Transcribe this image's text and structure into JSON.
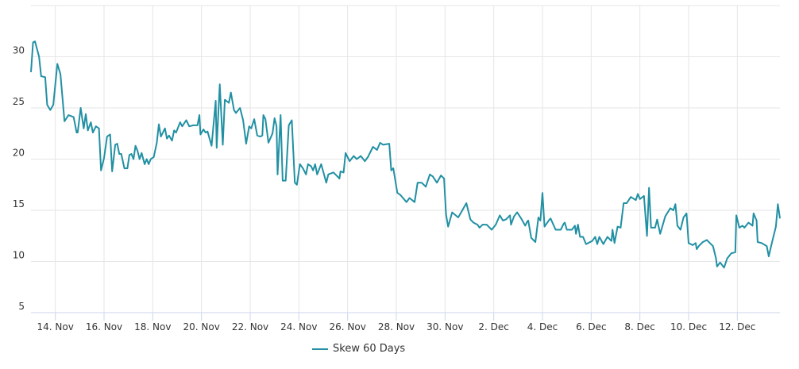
{
  "chart_data": {
    "type": "line",
    "title": "",
    "xlabel": "",
    "ylabel": "",
    "ylim": [
      5,
      35
    ],
    "yticks": [
      5,
      10,
      15,
      20,
      25,
      30
    ],
    "xlim": [
      "11-13 00:00",
      "12-13 18:00"
    ],
    "xticks": [
      {
        "date": "11-14 00:00",
        "label": "14. Nov"
      },
      {
        "date": "11-16 00:00",
        "label": "16. Nov"
      },
      {
        "date": "11-18 00:00",
        "label": "18. Nov"
      },
      {
        "date": "11-20 00:00",
        "label": "20. Nov"
      },
      {
        "date": "11-22 00:00",
        "label": "22. Nov"
      },
      {
        "date": "11-24 00:00",
        "label": "24. Nov"
      },
      {
        "date": "11-26 00:00",
        "label": "26. Nov"
      },
      {
        "date": "11-28 00:00",
        "label": "28. Nov"
      },
      {
        "date": "11-30 00:00",
        "label": "30. Nov"
      },
      {
        "date": "12-02 00:00",
        "label": "2. Dec"
      },
      {
        "date": "12-04 00:00",
        "label": "4. Dec"
      },
      {
        "date": "12-06 00:00",
        "label": "6. Dec"
      },
      {
        "date": "12-08 00:00",
        "label": "8. Dec"
      },
      {
        "date": "12-10 00:00",
        "label": "10. Dec"
      },
      {
        "date": "12-12 00:00",
        "label": "12. Dec"
      }
    ],
    "grid": true,
    "legend_position": "bottom",
    "series": [
      {
        "name": "Skew 60 Days",
        "color": "#2190a3",
        "points": [
          [
            "11-13 00:00",
            28.5
          ],
          [
            "11-13 02:00",
            31.4
          ],
          [
            "11-13 04:00",
            31.5
          ],
          [
            "11-13 08:00",
            30.0
          ],
          [
            "11-13 10:00",
            28.1
          ],
          [
            "11-13 14:00",
            28.0
          ],
          [
            "11-13 16:00",
            25.3
          ],
          [
            "11-13 19:00",
            24.8
          ],
          [
            "11-13 22:00",
            25.3
          ],
          [
            "11-14 02:00",
            29.3
          ],
          [
            "11-14 05:00",
            28.3
          ],
          [
            "11-14 09:00",
            23.7
          ],
          [
            "11-14 13:00",
            24.3
          ],
          [
            "11-14 18:00",
            24.1
          ],
          [
            "11-14 21:00",
            22.6
          ],
          [
            "11-14 22:00",
            22.6
          ],
          [
            "11-15 01:00",
            25.0
          ],
          [
            "11-15 04:00",
            23.0
          ],
          [
            "11-15 06:00",
            24.4
          ],
          [
            "11-15 08:00",
            22.8
          ],
          [
            "11-15 11:00",
            23.6
          ],
          [
            "11-15 13:00",
            22.6
          ],
          [
            "11-15 16:00",
            23.2
          ],
          [
            "11-15 19:00",
            23.0
          ],
          [
            "11-15 21:00",
            18.9
          ],
          [
            "11-16 00:00",
            20.1
          ],
          [
            "11-16 03:00",
            22.2
          ],
          [
            "11-16 06:00",
            22.4
          ],
          [
            "11-16 08:00",
            18.8
          ],
          [
            "11-16 11:00",
            21.4
          ],
          [
            "11-16 13:00",
            21.5
          ],
          [
            "11-16 15:00",
            20.5
          ],
          [
            "11-16 17:00",
            20.5
          ],
          [
            "11-16 20:00",
            19.1
          ],
          [
            "11-16 23:00",
            19.1
          ],
          [
            "11-17 01:00",
            20.4
          ],
          [
            "11-17 03:00",
            20.5
          ],
          [
            "11-17 05:00",
            20.0
          ],
          [
            "11-17 07:00",
            21.3
          ],
          [
            "11-17 09:00",
            20.8
          ],
          [
            "11-17 11:00",
            20.0
          ],
          [
            "11-17 13:00",
            20.6
          ],
          [
            "11-17 16:00",
            19.5
          ],
          [
            "11-17 18:00",
            20.0
          ],
          [
            "11-17 20:00",
            19.5
          ],
          [
            "11-17 22:00",
            20.0
          ],
          [
            "11-18 01:00",
            20.2
          ],
          [
            "11-18 04:00",
            21.6
          ],
          [
            "11-18 06:00",
            23.4
          ],
          [
            "11-18 08:00",
            22.2
          ],
          [
            "11-18 12:00",
            23.0
          ],
          [
            "11-18 14:00",
            22.0
          ],
          [
            "11-18 16:00",
            22.3
          ],
          [
            "11-18 19:00",
            21.8
          ],
          [
            "11-18 21:00",
            22.8
          ],
          [
            "11-18 23:00",
            22.6
          ],
          [
            "11-19 03:00",
            23.6
          ],
          [
            "11-19 05:00",
            23.2
          ],
          [
            "11-19 09:00",
            23.8
          ],
          [
            "11-19 12:00",
            23.2
          ],
          [
            "11-19 16:00",
            23.3
          ],
          [
            "11-19 20:00",
            23.3
          ],
          [
            "11-19 22:00",
            24.3
          ],
          [
            "11-19 23:00",
            22.4
          ],
          [
            "11-20 02:00",
            22.9
          ],
          [
            "11-20 04:00",
            22.6
          ],
          [
            "11-20 06:00",
            22.7
          ],
          [
            "11-20 10:00",
            21.3
          ],
          [
            "11-20 14:00",
            25.7
          ],
          [
            "11-20 15:00",
            21.1
          ],
          [
            "11-20 18:00",
            27.3
          ],
          [
            "11-20 21:00",
            21.4
          ],
          [
            "11-20 23:00",
            25.8
          ],
          [
            "11-21 03:00",
            25.5
          ],
          [
            "11-21 05:00",
            26.5
          ],
          [
            "11-21 08:00",
            24.8
          ],
          [
            "11-21 10:00",
            24.5
          ],
          [
            "11-21 14:00",
            25.0
          ],
          [
            "11-21 17:00",
            23.8
          ],
          [
            "11-21 20:00",
            21.5
          ],
          [
            "11-21 23:00",
            23.2
          ],
          [
            "11-22 01:00",
            23.0
          ],
          [
            "11-22 04:00",
            23.9
          ],
          [
            "11-22 07:00",
            22.3
          ],
          [
            "11-22 10:00",
            22.2
          ],
          [
            "11-22 12:00",
            22.3
          ],
          [
            "11-22 13:00",
            24.3
          ],
          [
            "11-22 15:00",
            23.9
          ],
          [
            "11-22 18:00",
            21.6
          ],
          [
            "11-22 22:00",
            22.5
          ],
          [
            "11-23 00:00",
            24.0
          ],
          [
            "11-23 02:00",
            23.2
          ],
          [
            "11-23 03:00",
            18.5
          ],
          [
            "11-23 06:00",
            24.3
          ],
          [
            "11-23 08:00",
            17.9
          ],
          [
            "11-23 11:00",
            17.9
          ],
          [
            "11-23 14:00",
            23.3
          ],
          [
            "11-23 17:00",
            23.8
          ],
          [
            "11-23 20:00",
            17.7
          ],
          [
            "11-23 22:00",
            17.5
          ],
          [
            "11-24 01:00",
            19.5
          ],
          [
            "11-24 04:00",
            19.1
          ],
          [
            "11-24 07:00",
            18.5
          ],
          [
            "11-24 09:00",
            19.5
          ],
          [
            "11-24 12:00",
            19.3
          ],
          [
            "11-24 14:00",
            18.9
          ],
          [
            "11-24 16:00",
            19.5
          ],
          [
            "11-24 18:00",
            18.5
          ],
          [
            "11-24 22:00",
            19.5
          ],
          [
            "11-25 01:00",
            18.4
          ],
          [
            "11-25 03:00",
            17.7
          ],
          [
            "11-25 05:00",
            18.5
          ],
          [
            "11-25 10:00",
            18.7
          ],
          [
            "11-25 13:00",
            18.4
          ],
          [
            "11-25 16:00",
            18.1
          ],
          [
            "11-25 17:00",
            18.8
          ],
          [
            "11-25 20:00",
            18.7
          ],
          [
            "11-25 22:00",
            20.6
          ],
          [
            "11-26 02:00",
            19.8
          ],
          [
            "11-26 06:00",
            20.3
          ],
          [
            "11-26 09:00",
            20.0
          ],
          [
            "11-26 13:00",
            20.3
          ],
          [
            "11-26 17:00",
            19.8
          ],
          [
            "11-26 20:00",
            20.2
          ],
          [
            "11-27 01:00",
            21.2
          ],
          [
            "11-27 05:00",
            20.9
          ],
          [
            "11-27 08:00",
            21.6
          ],
          [
            "11-27 11:00",
            21.4
          ],
          [
            "11-27 17:00",
            21.5
          ],
          [
            "11-27 19:00",
            18.9
          ],
          [
            "11-27 21:00",
            19.1
          ],
          [
            "11-28 01:00",
            16.7
          ],
          [
            "11-28 04:00",
            16.5
          ],
          [
            "11-28 10:00",
            15.8
          ],
          [
            "11-28 13:00",
            16.2
          ],
          [
            "11-28 18:00",
            15.8
          ],
          [
            "11-28 21:00",
            17.7
          ],
          [
            "11-29 01:00",
            17.7
          ],
          [
            "11-29 05:00",
            17.3
          ],
          [
            "11-29 09:00",
            18.5
          ],
          [
            "11-29 12:00",
            18.3
          ],
          [
            "11-29 16:00",
            17.7
          ],
          [
            "11-29 20:00",
            18.4
          ],
          [
            "11-29 23:00",
            18.1
          ],
          [
            "11-30 01:00",
            14.6
          ],
          [
            "11-30 03:00",
            13.4
          ],
          [
            "11-30 07:00",
            14.8
          ],
          [
            "11-30 13:00",
            14.3
          ],
          [
            "11-30 17:00",
            15.0
          ],
          [
            "11-30 21:00",
            15.7
          ],
          [
            "12-01 01:00",
            14.1
          ],
          [
            "12-01 04:00",
            13.8
          ],
          [
            "12-01 08:00",
            13.6
          ],
          [
            "12-01 10:00",
            13.3
          ],
          [
            "12-01 13:00",
            13.6
          ],
          [
            "12-01 17:00",
            13.6
          ],
          [
            "12-01 22:00",
            13.1
          ],
          [
            "12-02 02:00",
            13.6
          ],
          [
            "12-02 06:00",
            14.5
          ],
          [
            "12-02 09:00",
            14.0
          ],
          [
            "12-02 12:00",
            14.1
          ],
          [
            "12-02 16:00",
            14.5
          ],
          [
            "12-02 17:00",
            13.6
          ],
          [
            "12-02 20:00",
            14.4
          ],
          [
            "12-02 23:00",
            14.8
          ],
          [
            "12-03 03:00",
            14.2
          ],
          [
            "12-03 07:00",
            13.5
          ],
          [
            "12-03 09:00",
            13.9
          ],
          [
            "12-03 10:00",
            14.0
          ],
          [
            "12-03 13:00",
            12.3
          ],
          [
            "12-03 17:00",
            11.9
          ],
          [
            "12-03 20:00",
            14.3
          ],
          [
            "12-03 22:00",
            14.0
          ],
          [
            "12-04 00:00",
            16.7
          ],
          [
            "12-04 02:00",
            13.4
          ],
          [
            "12-04 07:00",
            14.1
          ],
          [
            "12-04 08:00",
            14.2
          ],
          [
            "12-04 13:00",
            13.1
          ],
          [
            "12-04 18:00",
            13.1
          ],
          [
            "12-04 21:00",
            13.7
          ],
          [
            "12-04 22:00",
            13.8
          ],
          [
            "12-05 00:00",
            13.1
          ],
          [
            "12-05 05:00",
            13.1
          ],
          [
            "12-05 08:00",
            13.5
          ],
          [
            "12-05 09:00",
            12.7
          ],
          [
            "12-05 11:00",
            13.6
          ],
          [
            "12-05 13:00",
            12.4
          ],
          [
            "12-05 16:00",
            12.4
          ],
          [
            "12-05 19:00",
            11.7
          ],
          [
            "12-06 01:00",
            12.0
          ],
          [
            "12-06 04:00",
            12.4
          ],
          [
            "12-06 06:00",
            11.7
          ],
          [
            "12-06 08:00",
            12.4
          ],
          [
            "12-06 12:00",
            11.7
          ],
          [
            "12-06 16:00",
            12.4
          ],
          [
            "12-06 20:00",
            12.0
          ],
          [
            "12-06 21:00",
            13.1
          ],
          [
            "12-06 23:00",
            11.8
          ],
          [
            "12-07 02:00",
            13.4
          ],
          [
            "12-07 05:00",
            13.3
          ],
          [
            "12-07 08:00",
            15.7
          ],
          [
            "12-07 11:00",
            15.7
          ],
          [
            "12-07 15:00",
            16.3
          ],
          [
            "12-07 20:00",
            16.0
          ],
          [
            "12-07 22:00",
            16.6
          ],
          [
            "12-08 00:00",
            16.1
          ],
          [
            "12-08 04:00",
            16.4
          ],
          [
            "12-08 07:00",
            12.5
          ],
          [
            "12-08 09:00",
            17.2
          ],
          [
            "12-08 11:00",
            13.3
          ],
          [
            "12-08 15:00",
            13.3
          ],
          [
            "12-08 17:00",
            14.1
          ],
          [
            "12-08 20:00",
            12.7
          ],
          [
            "12-09 01:00",
            14.4
          ],
          [
            "12-09 06:00",
            15.2
          ],
          [
            "12-09 09:00",
            15.0
          ],
          [
            "12-09 11:00",
            15.6
          ],
          [
            "12-09 13:00",
            13.5
          ],
          [
            "12-09 16:00",
            13.1
          ],
          [
            "12-09 19:00",
            14.3
          ],
          [
            "12-09 22:00",
            14.7
          ],
          [
            "12-10 00:00",
            11.8
          ],
          [
            "12-10 04:00",
            11.6
          ],
          [
            "12-10 07:00",
            11.8
          ],
          [
            "12-10 08:00",
            11.2
          ],
          [
            "12-10 10:00",
            11.5
          ],
          [
            "12-10 14:00",
            11.9
          ],
          [
            "12-10 18:00",
            12.1
          ],
          [
            "12-10 21:00",
            11.8
          ],
          [
            "12-11 00:00",
            11.5
          ],
          [
            "12-11 03:00",
            10.3
          ],
          [
            "12-11 04:00",
            9.5
          ],
          [
            "12-11 07:00",
            9.9
          ],
          [
            "12-11 11:00",
            9.4
          ],
          [
            "12-11 14:00",
            10.3
          ],
          [
            "12-11 18:00",
            10.8
          ],
          [
            "12-11 22:00",
            10.9
          ],
          [
            "12-11 23:00",
            14.5
          ],
          [
            "12-12 02:00",
            13.3
          ],
          [
            "12-12 05:00",
            13.5
          ],
          [
            "12-12 07:00",
            13.3
          ],
          [
            "12-12 11:00",
            13.8
          ],
          [
            "12-12 15:00",
            13.5
          ],
          [
            "12-12 16:00",
            14.7
          ],
          [
            "12-12 19:00",
            14.0
          ],
          [
            "12-12 20:00",
            11.9
          ],
          [
            "12-13 00:00",
            11.8
          ],
          [
            "12-13 05:00",
            11.5
          ],
          [
            "12-13 07:00",
            10.5
          ],
          [
            "12-13 10:00",
            11.8
          ],
          [
            "12-13 14:00",
            13.4
          ],
          [
            "12-13 16:00",
            15.6
          ],
          [
            "12-13 18:00",
            14.2
          ]
        ]
      }
    ]
  }
}
